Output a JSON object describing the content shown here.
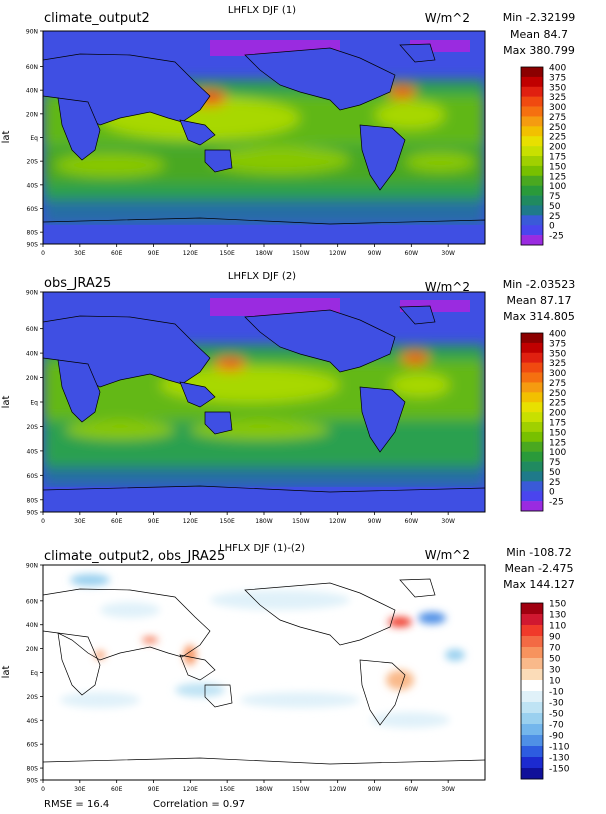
{
  "colors": {
    "ocean_base": "#4a55e8",
    "land": "#3f4fe3",
    "coast": "#000000",
    "diff_bg": "#ffffff"
  },
  "footer": {
    "rmse": "RMSE = 16.4",
    "correlation": "Correlation = 0.97"
  },
  "axes": {
    "ylabel": "lat",
    "lat_ticks": [
      "90N",
      "60N",
      "40N",
      "20N",
      "Eq",
      "20S",
      "40S",
      "60S",
      "80S",
      "90S"
    ],
    "lat_values": [
      90,
      60,
      40,
      20,
      0,
      -20,
      -40,
      -60,
      -80,
      -90
    ],
    "lon_ticks": [
      "0",
      "30E",
      "60E",
      "90E",
      "120E",
      "150E",
      "180W",
      "150W",
      "120W",
      "90W",
      "60W",
      "30W"
    ],
    "lon_values": [
      0,
      30,
      60,
      90,
      120,
      150,
      180,
      210,
      240,
      270,
      300,
      330
    ],
    "lon_range": [
      0,
      360
    ],
    "lat_range": [
      -90,
      90
    ]
  },
  "chart_data": [
    {
      "type": "heatmap",
      "title": "LHFLX DJF (1)",
      "left_label": "climate_output2",
      "units": "W/m^2",
      "stats": {
        "min": "Min -2.32199",
        "mean": "Mean 84.7",
        "max": "Max 380.799"
      },
      "colorbar": {
        "labels": [
          "400",
          "375",
          "350",
          "325",
          "300",
          "275",
          "250",
          "225",
          "200",
          "175",
          "150",
          "125",
          "100",
          "75",
          "50",
          "25",
          "0",
          "-25"
        ],
        "colors": [
          "#8b0000",
          "#c00000",
          "#e02010",
          "#f04a10",
          "#f57010",
          "#f59b10",
          "#f2c000",
          "#e8e000",
          "#c8e000",
          "#a0d000",
          "#78c000",
          "#4aa820",
          "#2a9a3a",
          "#208a60",
          "#1f7a8a",
          "#3a5ad8",
          "#4a45ee",
          "#9a2be0"
        ]
      }
    },
    {
      "type": "heatmap",
      "title": "LHFLX DJF (2)",
      "left_label": "obs_JRA25",
      "units": "W/m^2",
      "stats": {
        "min": "Min -2.03523",
        "mean": "Mean 87.17",
        "max": "Max 314.805"
      },
      "colorbar": {
        "labels": [
          "400",
          "375",
          "350",
          "325",
          "300",
          "275",
          "250",
          "225",
          "200",
          "175",
          "150",
          "125",
          "100",
          "75",
          "50",
          "25",
          "0",
          "-25"
        ],
        "colors": [
          "#8b0000",
          "#c00000",
          "#e02010",
          "#f04a10",
          "#f57010",
          "#f59b10",
          "#f2c000",
          "#e8e000",
          "#c8e000",
          "#a0d000",
          "#78c000",
          "#4aa820",
          "#2a9a3a",
          "#208a60",
          "#1f7a8a",
          "#3a5ad8",
          "#4a45ee",
          "#9a2be0"
        ]
      }
    },
    {
      "type": "heatmap",
      "title": "LHFLX DJF (1)-(2)",
      "left_label": "climate_output2, obs_JRA25",
      "units": "W/m^2",
      "stats": {
        "min": "Min -108.72",
        "mean": "Mean -2.475",
        "max": "Max 144.127"
      },
      "colorbar": {
        "labels": [
          "150",
          "130",
          "110",
          "90",
          "70",
          "50",
          "30",
          "10",
          "-10",
          "-30",
          "-50",
          "-70",
          "-90",
          "-110",
          "-130",
          "-150"
        ],
        "colors": [
          "#a00010",
          "#d01830",
          "#f03a2a",
          "#f36a44",
          "#f7935e",
          "#f9b98a",
          "#fbdcb8",
          "#ffffff",
          "#e0f1f9",
          "#bfe3f4",
          "#9ad0ef",
          "#74b6ec",
          "#4f90e6",
          "#2d5ce0",
          "#1c2ad0",
          "#10109a"
        ]
      }
    }
  ]
}
